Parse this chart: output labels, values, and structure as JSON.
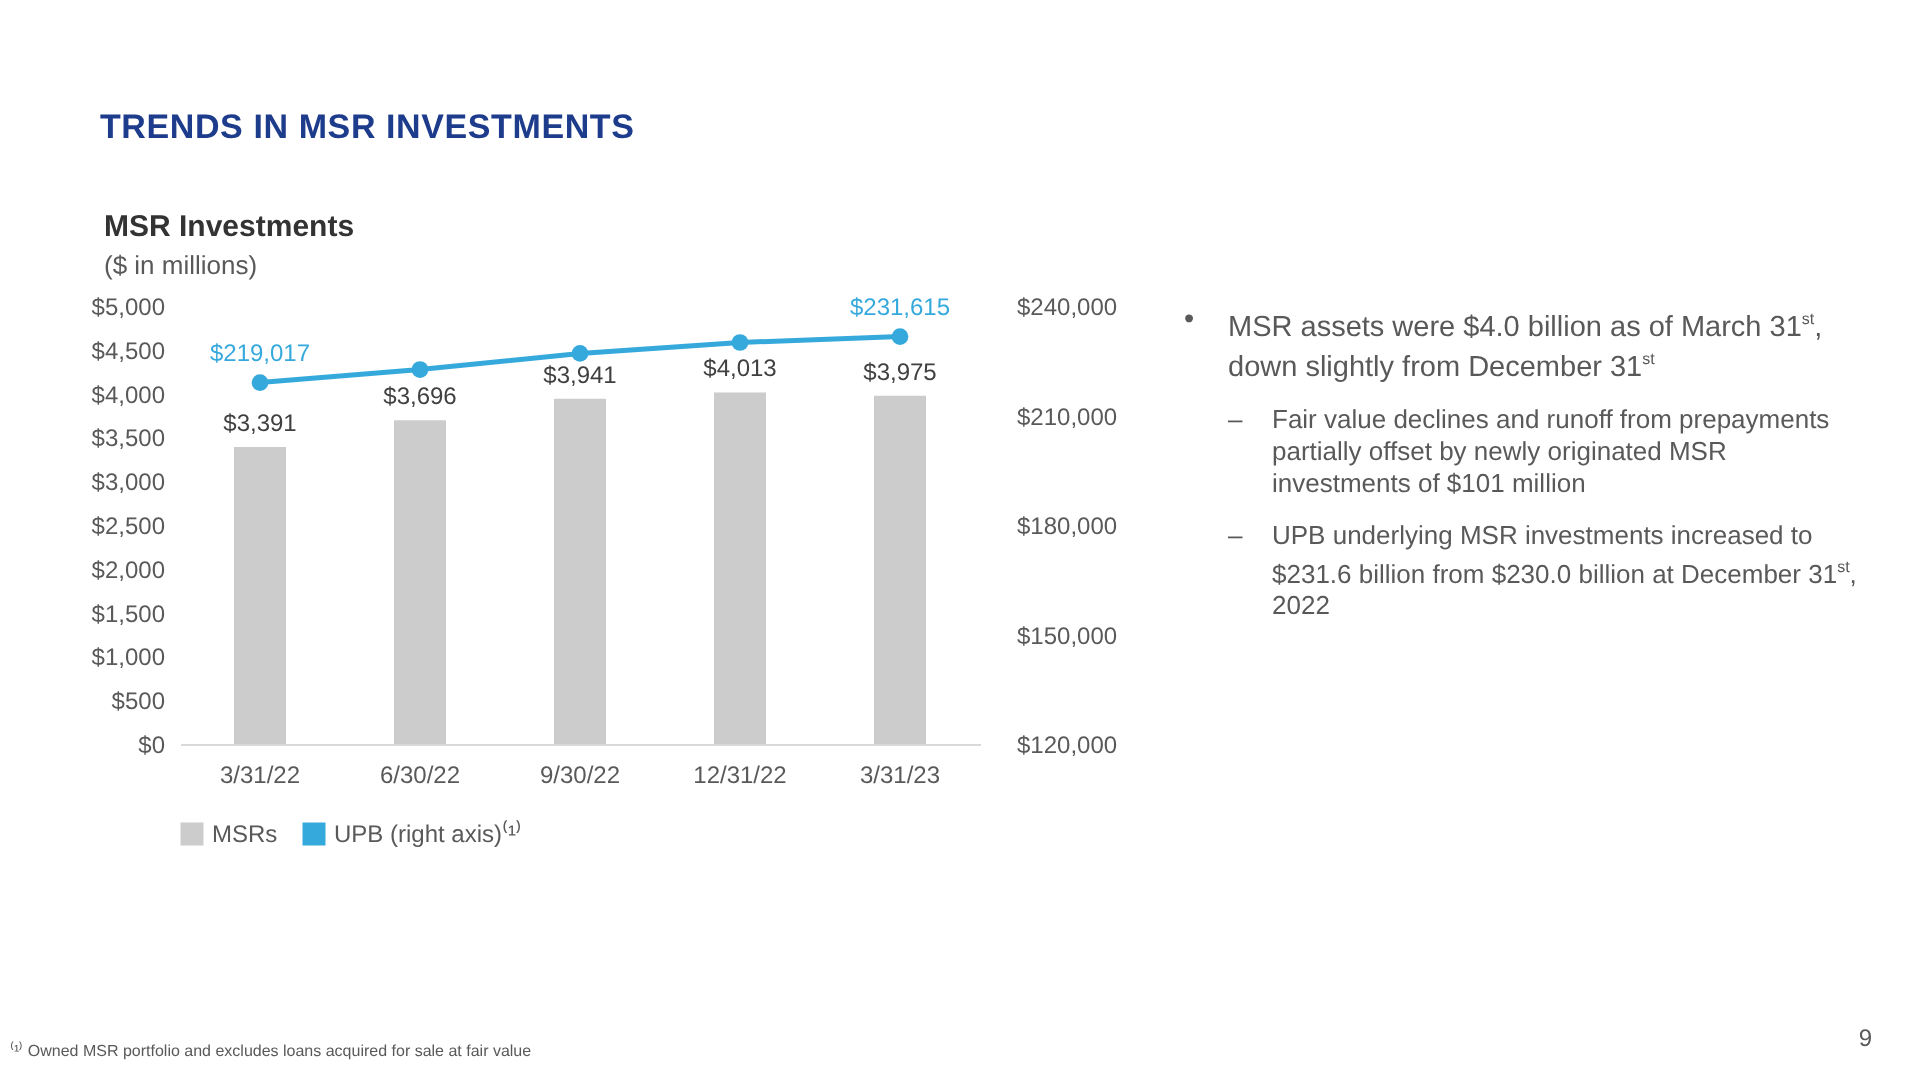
{
  "chart_data": {
    "type": "bar",
    "title": "TRENDS IN MSR INVESTMENTS",
    "subtitle": "MSR Investments",
    "ylabel": "($ in millions)",
    "categories": [
      "3/31/22",
      "6/30/22",
      "9/30/22",
      "12/31/22",
      "3/31/23"
    ],
    "series": [
      {
        "name": "MSRs",
        "color": "#cccccc",
        "values": [
          3391,
          3696,
          3941,
          4013,
          3975
        ],
        "value_labels": [
          "$3,391",
          "$3,696",
          "$3,941",
          "$4,013",
          "$3,975"
        ]
      },
      {
        "name": "UPB (right axis)⁽¹⁾",
        "type": "line",
        "axis": "y2",
        "color": "#36a9dc",
        "values": [
          219017,
          222600,
          227000,
          230000,
          231615
        ],
        "value_labels": [
          "$219,017",
          null,
          null,
          null,
          "$231,615"
        ]
      }
    ],
    "ylim": [
      0,
      5000
    ],
    "yticks": [
      {
        "value": 0,
        "label": "$0"
      },
      {
        "value": 500,
        "label": "$500"
      },
      {
        "value": 1000,
        "label": "$1,000"
      },
      {
        "value": 1500,
        "label": "$1,500"
      },
      {
        "value": 2000,
        "label": "$2,000"
      },
      {
        "value": 2500,
        "label": "$2,500"
      },
      {
        "value": 3000,
        "label": "$3,000"
      },
      {
        "value": 3500,
        "label": "$3,500"
      },
      {
        "value": 4000,
        "label": "$4,000"
      },
      {
        "value": 4500,
        "label": "$4,500"
      },
      {
        "value": 5000,
        "label": "$5,000"
      }
    ],
    "y2lim": [
      120000,
      240000
    ],
    "y2ticks": [
      {
        "value": 120000,
        "label": "$120,000"
      },
      {
        "value": 150000,
        "label": "$150,000"
      },
      {
        "value": 180000,
        "label": "$180,000"
      },
      {
        "value": 210000,
        "label": "$210,000"
      },
      {
        "value": 240000,
        "label": "$240,000"
      }
    ],
    "marker": "circle",
    "legend": "bottom",
    "annotations": [
      "• MSR assets were $4.0 billion as of March 31$^{st}$, down slightly from December 31$^{st}$",
      "– Fair value declines and runoff from prepayments partially offset by newly originated MSR investments of $101 million",
      "– UPB underlying MSR investments increased to $231.6 billion from $230.0 billion at December 31$^{st}$, 2022",
      "⁽¹⁾ Owned MSR portfolio and excludes loans acquired for sale at fair value",
      "9"
    ]
  }
}
